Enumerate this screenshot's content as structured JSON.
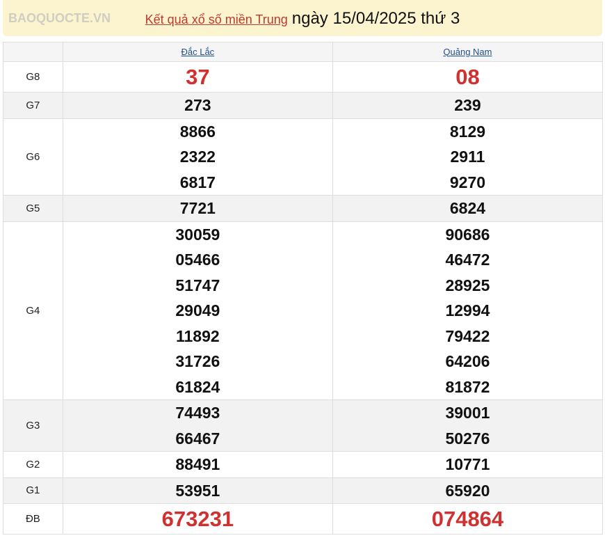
{
  "header": {
    "link": "Kết quả xổ số miền Trung",
    "date": "ngày 15/04/2025 thứ 3"
  },
  "columns": [
    "Đắc Lắc",
    "Quảng Nam"
  ],
  "rows": [
    {
      "label": "G8",
      "a": [
        "37"
      ],
      "b": [
        "08"
      ]
    },
    {
      "label": "G7",
      "a": [
        "273"
      ],
      "b": [
        "239"
      ]
    },
    {
      "label": "G6",
      "a": [
        "8866",
        "2322",
        "6817"
      ],
      "b": [
        "8129",
        "2911",
        "9270"
      ]
    },
    {
      "label": "G5",
      "a": [
        "7721"
      ],
      "b": [
        "6824"
      ]
    },
    {
      "label": "G4",
      "a": [
        "30059",
        "05466",
        "51747",
        "29049",
        "11892",
        "31726",
        "61824"
      ],
      "b": [
        "90686",
        "46472",
        "28925",
        "12994",
        "79422",
        "64206",
        "81872"
      ]
    },
    {
      "label": "G3",
      "a": [
        "74493",
        "66467"
      ],
      "b": [
        "39001",
        "50276"
      ]
    },
    {
      "label": "G2",
      "a": [
        "88491"
      ],
      "b": [
        "10771"
      ]
    },
    {
      "label": "G1",
      "a": [
        "53951"
      ],
      "b": [
        "65920"
      ]
    },
    {
      "label": "ĐB",
      "a": [
        "673231"
      ],
      "b": [
        "074864"
      ]
    }
  ],
  "watermark": "BAOQUOCTE.VN",
  "colors": {
    "accent_red": "#d03030",
    "header_bg": "#fcf3cf",
    "link_blue": "#1f4e8c"
  }
}
